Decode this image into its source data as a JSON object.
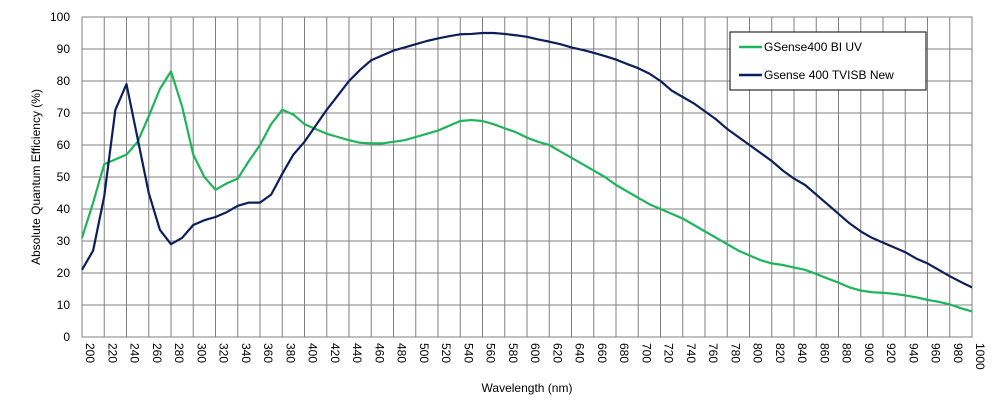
{
  "chart_data": {
    "type": "line",
    "xlabel": "Wavelength (nm)",
    "ylabel": "Absolute Quantum Efficiency (%)",
    "xlim": [
      200,
      1000
    ],
    "ylim": [
      0,
      100
    ],
    "x_ticks": [
      200,
      220,
      240,
      260,
      280,
      300,
      320,
      340,
      360,
      380,
      400,
      420,
      440,
      460,
      480,
      500,
      520,
      540,
      560,
      580,
      600,
      620,
      640,
      660,
      680,
      700,
      720,
      740,
      760,
      780,
      800,
      820,
      840,
      860,
      880,
      900,
      920,
      940,
      960,
      980,
      1000
    ],
    "y_ticks": [
      0,
      10,
      20,
      30,
      40,
      50,
      60,
      70,
      80,
      90,
      100
    ],
    "grid": true,
    "legend_position": "top-right",
    "series": [
      {
        "name": "GSense400 BI UV",
        "color": "#1db45a",
        "points": [
          [
            200,
            31
          ],
          [
            210,
            42
          ],
          [
            220,
            54
          ],
          [
            230,
            55.5
          ],
          [
            240,
            57
          ],
          [
            250,
            61
          ],
          [
            260,
            69
          ],
          [
            270,
            77.5
          ],
          [
            280,
            83
          ],
          [
            290,
            72
          ],
          [
            300,
            57
          ],
          [
            310,
            50
          ],
          [
            320,
            46
          ],
          [
            330,
            48
          ],
          [
            340,
            49.5
          ],
          [
            350,
            55
          ],
          [
            360,
            60
          ],
          [
            370,
            66.5
          ],
          [
            380,
            71
          ],
          [
            390,
            69.5
          ],
          [
            400,
            66.5
          ],
          [
            410,
            65
          ],
          [
            420,
            63.5
          ],
          [
            430,
            62.5
          ],
          [
            440,
            61.5
          ],
          [
            450,
            60.7
          ],
          [
            460,
            60.5
          ],
          [
            470,
            60.5
          ],
          [
            480,
            61
          ],
          [
            490,
            61.5
          ],
          [
            500,
            62.5
          ],
          [
            510,
            63.5
          ],
          [
            520,
            64.5
          ],
          [
            530,
            66
          ],
          [
            540,
            67.5
          ],
          [
            550,
            67.8
          ],
          [
            560,
            67.5
          ],
          [
            570,
            66.5
          ],
          [
            580,
            65.2
          ],
          [
            590,
            64
          ],
          [
            600,
            62.3
          ],
          [
            610,
            61
          ],
          [
            620,
            60
          ],
          [
            630,
            58
          ],
          [
            640,
            56
          ],
          [
            650,
            54
          ],
          [
            660,
            52
          ],
          [
            670,
            50
          ],
          [
            680,
            47.5
          ],
          [
            690,
            45.5
          ],
          [
            700,
            43.5
          ],
          [
            710,
            41.5
          ],
          [
            720,
            40
          ],
          [
            730,
            38.5
          ],
          [
            740,
            37
          ],
          [
            750,
            35
          ],
          [
            760,
            33
          ],
          [
            770,
            31
          ],
          [
            780,
            29
          ],
          [
            790,
            27
          ],
          [
            800,
            25.5
          ],
          [
            810,
            24
          ],
          [
            820,
            23
          ],
          [
            830,
            22.5
          ],
          [
            840,
            21.7
          ],
          [
            850,
            21
          ],
          [
            860,
            19.7
          ],
          [
            870,
            18.3
          ],
          [
            880,
            17
          ],
          [
            890,
            15.5
          ],
          [
            900,
            14.5
          ],
          [
            910,
            14
          ],
          [
            920,
            13.8
          ],
          [
            930,
            13.5
          ],
          [
            940,
            13
          ],
          [
            950,
            12.4
          ],
          [
            960,
            11.6
          ],
          [
            970,
            11
          ],
          [
            980,
            10.2
          ],
          [
            990,
            9
          ],
          [
            1000,
            8
          ]
        ]
      },
      {
        "name": "Gsense 400 TVISB New",
        "color": "#0c1f5a",
        "points": [
          [
            200,
            21
          ],
          [
            210,
            27
          ],
          [
            220,
            44
          ],
          [
            230,
            71
          ],
          [
            240,
            79
          ],
          [
            250,
            62
          ],
          [
            260,
            45
          ],
          [
            270,
            33.5
          ],
          [
            280,
            29
          ],
          [
            290,
            31
          ],
          [
            300,
            35
          ],
          [
            310,
            36.5
          ],
          [
            320,
            37.5
          ],
          [
            330,
            39
          ],
          [
            340,
            41
          ],
          [
            350,
            42
          ],
          [
            360,
            42
          ],
          [
            370,
            44.5
          ],
          [
            380,
            51
          ],
          [
            390,
            57
          ],
          [
            400,
            61
          ],
          [
            410,
            66
          ],
          [
            420,
            71
          ],
          [
            430,
            75.5
          ],
          [
            440,
            80
          ],
          [
            450,
            83.5
          ],
          [
            460,
            86.5
          ],
          [
            470,
            88
          ],
          [
            480,
            89.5
          ],
          [
            490,
            90.5
          ],
          [
            500,
            91.5
          ],
          [
            510,
            92.5
          ],
          [
            520,
            93.3
          ],
          [
            530,
            94
          ],
          [
            540,
            94.6
          ],
          [
            550,
            94.7
          ],
          [
            560,
            95
          ],
          [
            570,
            95
          ],
          [
            580,
            94.7
          ],
          [
            590,
            94.3
          ],
          [
            600,
            93.8
          ],
          [
            610,
            93
          ],
          [
            620,
            92.3
          ],
          [
            630,
            91.5
          ],
          [
            640,
            90.5
          ],
          [
            650,
            89.7
          ],
          [
            660,
            88.8
          ],
          [
            670,
            87.8
          ],
          [
            680,
            86.7
          ],
          [
            690,
            85.3
          ],
          [
            700,
            84
          ],
          [
            710,
            82.3
          ],
          [
            720,
            80
          ],
          [
            730,
            77
          ],
          [
            740,
            75
          ],
          [
            750,
            73
          ],
          [
            760,
            70.5
          ],
          [
            770,
            68
          ],
          [
            780,
            65
          ],
          [
            790,
            62.5
          ],
          [
            800,
            60
          ],
          [
            810,
            57.5
          ],
          [
            820,
            55
          ],
          [
            830,
            52
          ],
          [
            840,
            49.5
          ],
          [
            850,
            47.5
          ],
          [
            860,
            44.5
          ],
          [
            870,
            41.5
          ],
          [
            880,
            38.5
          ],
          [
            890,
            35.5
          ],
          [
            900,
            33
          ],
          [
            910,
            31
          ],
          [
            920,
            29.5
          ],
          [
            930,
            28
          ],
          [
            940,
            26.5
          ],
          [
            950,
            24.5
          ],
          [
            960,
            23
          ],
          [
            970,
            21
          ],
          [
            980,
            19
          ],
          [
            990,
            17.2
          ],
          [
            1000,
            15.5
          ]
        ]
      }
    ]
  }
}
